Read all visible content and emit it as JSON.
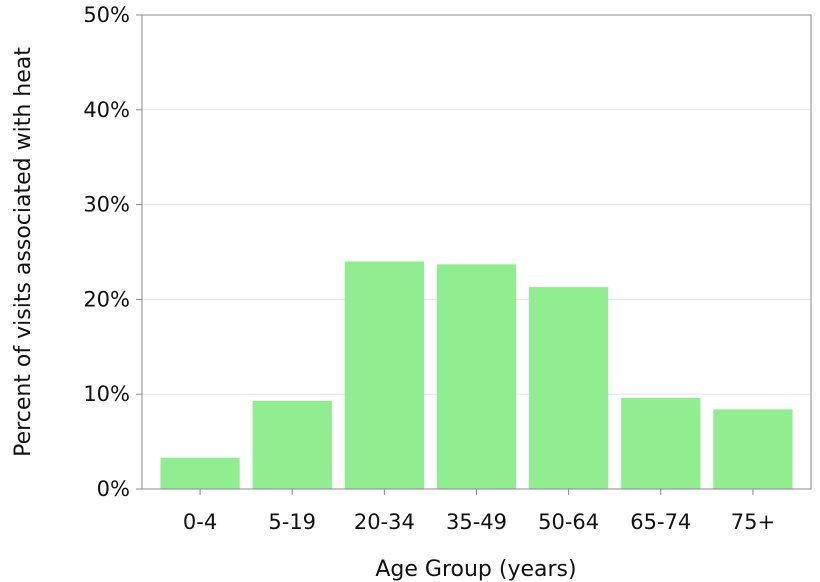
{
  "chart_data": {
    "type": "bar",
    "title": "",
    "xlabel": "Age Group (years)",
    "ylabel": "Percent of visits associated with heat",
    "categories": [
      "0-4",
      "5-19",
      "20-34",
      "35-49",
      "50-64",
      "65-74",
      "75+"
    ],
    "values": [
      3.3,
      9.3,
      24.0,
      23.7,
      21.3,
      9.6,
      8.4
    ],
    "ylim": [
      0,
      50
    ],
    "y_ticks": [
      0,
      10,
      20,
      30,
      40,
      50
    ],
    "y_tick_labels": [
      "0%",
      "10%",
      "20%",
      "30%",
      "40%",
      "50%"
    ],
    "grid": true,
    "legend": "none",
    "bar_color": "#90EE90"
  }
}
